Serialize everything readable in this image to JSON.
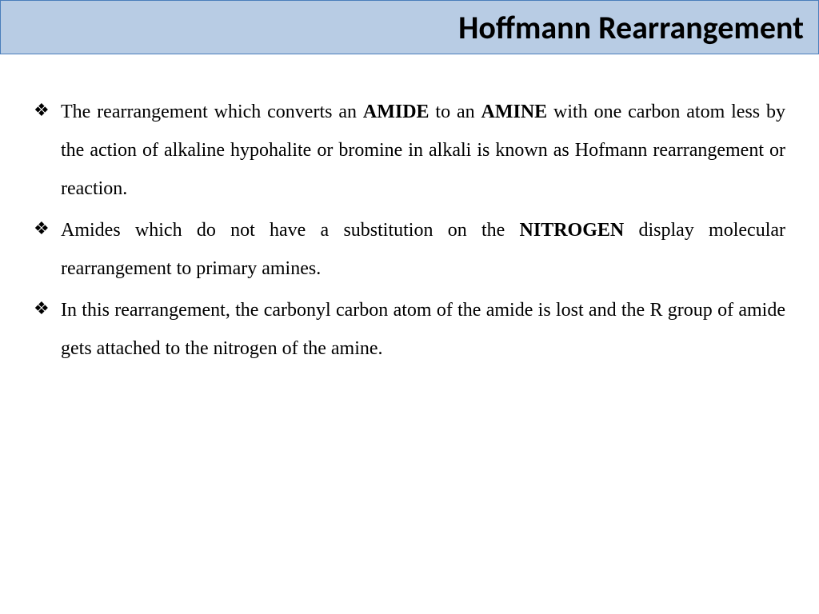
{
  "header": {
    "title": "Hoffmann Rearrangement"
  },
  "bullets": [
    {
      "segments": [
        {
          "text": "The rearrangement which converts an ",
          "bold": false
        },
        {
          "text": "AMIDE",
          "bold": true
        },
        {
          "text": " to an ",
          "bold": false
        },
        {
          "text": "AMINE",
          "bold": true
        },
        {
          "text": " with one carbon atom less by the action of alkaline hypohalite or bromine in alkali is known as Hofmann rearrangement or reaction.",
          "bold": false
        }
      ]
    },
    {
      "segments": [
        {
          "text": "Amides which do not have a substitution on the ",
          "bold": false
        },
        {
          "text": "NITROGEN",
          "bold": true
        },
        {
          "text": " display molecular rearrangement to primary amines.",
          "bold": false
        }
      ]
    },
    {
      "segments": [
        {
          "text": "In this rearrangement, the carbonyl carbon atom of the amide is lost and the R group of amide gets attached to the nitrogen of the amine.",
          "bold": false
        }
      ]
    }
  ]
}
